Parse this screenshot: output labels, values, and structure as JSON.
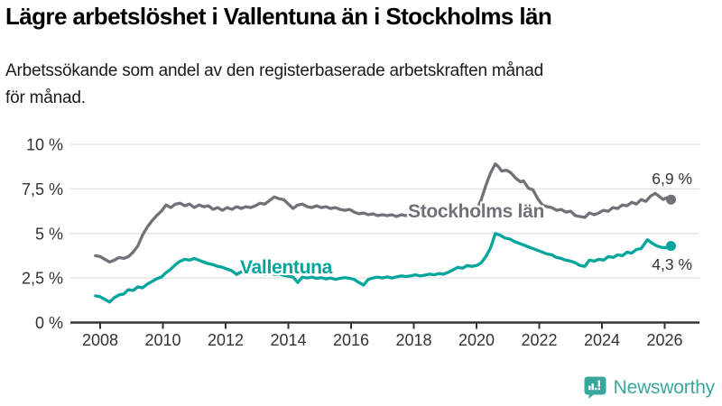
{
  "header": {
    "title": "Lägre arbetslöshet i Vallentuna än i Stockholms län",
    "subtitle_lines": [
      "Arbetssökande som andel av den registerbaserade arbetskraften månad",
      "för månad."
    ]
  },
  "branding": {
    "name": "Newsworthy",
    "color": "#3aa79f"
  },
  "colors": {
    "grid": "#e0e0e0",
    "axis": "#333333",
    "tick_label": "#333333",
    "end_label": "#333333",
    "background": "#ffffff"
  },
  "chart_data": {
    "type": "line",
    "title": "Lägre arbetslöshet i Vallentuna än i Stockholms län",
    "subtitle": "Arbetssökande som andel av den registerbaserade arbetskraften månad för månad.",
    "xlabel": "",
    "ylabel": "",
    "unit": "%",
    "grid": true,
    "legend_position": "inline-labels",
    "xlim": [
      2007.7,
      2026.8
    ],
    "ylim": [
      0,
      10
    ],
    "x_ticks": [
      2008,
      2010,
      2012,
      2014,
      2016,
      2018,
      2020,
      2022,
      2024,
      2026
    ],
    "y_ticks": [
      {
        "value": 0,
        "label": "0 %"
      },
      {
        "value": 2.5,
        "label": "2,5 %"
      },
      {
        "value": 5,
        "label": "5 %"
      },
      {
        "value": 7.5,
        "label": "7,5 %"
      },
      {
        "value": 10,
        "label": "10 %"
      }
    ],
    "series": [
      {
        "name": "Stockholms län",
        "color": "#74707a",
        "end_label": "6,9 %",
        "end_value": 6.9,
        "points": [
          [
            2007.85,
            3.75
          ],
          [
            2008.0,
            3.7
          ],
          [
            2008.15,
            3.55
          ],
          [
            2008.3,
            3.4
          ],
          [
            2008.45,
            3.5
          ],
          [
            2008.6,
            3.65
          ],
          [
            2008.75,
            3.6
          ],
          [
            2008.9,
            3.7
          ],
          [
            2009.05,
            3.95
          ],
          [
            2009.2,
            4.3
          ],
          [
            2009.35,
            4.9
          ],
          [
            2009.5,
            5.35
          ],
          [
            2009.65,
            5.7
          ],
          [
            2009.8,
            6.0
          ],
          [
            2009.95,
            6.25
          ],
          [
            2010.1,
            6.6
          ],
          [
            2010.25,
            6.45
          ],
          [
            2010.4,
            6.65
          ],
          [
            2010.55,
            6.7
          ],
          [
            2010.7,
            6.55
          ],
          [
            2010.85,
            6.65
          ],
          [
            2011.0,
            6.45
          ],
          [
            2011.15,
            6.6
          ],
          [
            2011.3,
            6.5
          ],
          [
            2011.45,
            6.55
          ],
          [
            2011.6,
            6.35
          ],
          [
            2011.75,
            6.45
          ],
          [
            2011.9,
            6.3
          ],
          [
            2012.05,
            6.45
          ],
          [
            2012.2,
            6.35
          ],
          [
            2012.35,
            6.5
          ],
          [
            2012.5,
            6.4
          ],
          [
            2012.65,
            6.5
          ],
          [
            2012.8,
            6.45
          ],
          [
            2012.95,
            6.55
          ],
          [
            2013.1,
            6.7
          ],
          [
            2013.25,
            6.65
          ],
          [
            2013.4,
            6.85
          ],
          [
            2013.55,
            7.05
          ],
          [
            2013.7,
            6.95
          ],
          [
            2013.85,
            6.9
          ],
          [
            2014.0,
            6.65
          ],
          [
            2014.15,
            6.4
          ],
          [
            2014.3,
            6.6
          ],
          [
            2014.45,
            6.65
          ],
          [
            2014.6,
            6.5
          ],
          [
            2014.75,
            6.45
          ],
          [
            2014.9,
            6.55
          ],
          [
            2015.05,
            6.45
          ],
          [
            2015.2,
            6.5
          ],
          [
            2015.35,
            6.4
          ],
          [
            2015.5,
            6.45
          ],
          [
            2015.65,
            6.35
          ],
          [
            2015.8,
            6.3
          ],
          [
            2015.95,
            6.35
          ],
          [
            2016.1,
            6.2
          ],
          [
            2016.25,
            6.1
          ],
          [
            2016.4,
            6.15
          ],
          [
            2016.55,
            6.05
          ],
          [
            2016.7,
            6.1
          ],
          [
            2016.85,
            6.0
          ],
          [
            2017.0,
            6.05
          ],
          [
            2017.15,
            6.0
          ],
          [
            2017.3,
            6.05
          ],
          [
            2017.45,
            5.95
          ],
          [
            2017.6,
            6.05
          ],
          [
            2017.75,
            6.0
          ],
          [
            2017.9,
            6.05
          ],
          [
            2018.05,
            6.0
          ],
          [
            2018.2,
            6.1
          ],
          [
            2018.35,
            6.0
          ],
          [
            2018.5,
            6.05
          ],
          [
            2018.65,
            6.1
          ],
          [
            2018.8,
            6.05
          ],
          [
            2018.95,
            6.1
          ],
          [
            2019.1,
            6.15
          ],
          [
            2019.25,
            6.1
          ],
          [
            2019.4,
            6.2
          ],
          [
            2019.55,
            6.15
          ],
          [
            2019.7,
            6.2
          ],
          [
            2019.85,
            6.25
          ],
          [
            2020.0,
            6.3
          ],
          [
            2020.15,
            6.9
          ],
          [
            2020.3,
            7.7
          ],
          [
            2020.45,
            8.4
          ],
          [
            2020.6,
            8.9
          ],
          [
            2020.7,
            8.75
          ],
          [
            2020.8,
            8.5
          ],
          [
            2020.95,
            8.55
          ],
          [
            2021.1,
            8.4
          ],
          [
            2021.25,
            8.1
          ],
          [
            2021.4,
            7.9
          ],
          [
            2021.5,
            7.95
          ],
          [
            2021.65,
            7.55
          ],
          [
            2021.8,
            7.45
          ],
          [
            2021.95,
            6.95
          ],
          [
            2022.1,
            6.6
          ],
          [
            2022.25,
            6.5
          ],
          [
            2022.4,
            6.45
          ],
          [
            2022.55,
            6.3
          ],
          [
            2022.7,
            6.35
          ],
          [
            2022.85,
            6.2
          ],
          [
            2023.0,
            6.25
          ],
          [
            2023.15,
            6.0
          ],
          [
            2023.3,
            5.95
          ],
          [
            2023.45,
            5.9
          ],
          [
            2023.6,
            6.15
          ],
          [
            2023.75,
            6.05
          ],
          [
            2023.9,
            6.15
          ],
          [
            2024.05,
            6.3
          ],
          [
            2024.2,
            6.25
          ],
          [
            2024.35,
            6.45
          ],
          [
            2024.5,
            6.4
          ],
          [
            2024.65,
            6.6
          ],
          [
            2024.8,
            6.55
          ],
          [
            2024.95,
            6.75
          ],
          [
            2025.1,
            6.65
          ],
          [
            2025.25,
            6.9
          ],
          [
            2025.4,
            6.8
          ],
          [
            2025.55,
            7.1
          ],
          [
            2025.7,
            7.25
          ],
          [
            2025.85,
            7.05
          ],
          [
            2025.95,
            6.9
          ],
          [
            2026.05,
            7.0
          ],
          [
            2026.2,
            6.9
          ]
        ]
      },
      {
        "name": "Vallentuna",
        "color": "#00a59b",
        "end_label": "4,3 %",
        "end_value": 4.3,
        "points": [
          [
            2007.85,
            1.5
          ],
          [
            2008.0,
            1.45
          ],
          [
            2008.15,
            1.3
          ],
          [
            2008.3,
            1.15
          ],
          [
            2008.45,
            1.4
          ],
          [
            2008.6,
            1.55
          ],
          [
            2008.75,
            1.6
          ],
          [
            2008.9,
            1.85
          ],
          [
            2009.05,
            1.8
          ],
          [
            2009.2,
            2.0
          ],
          [
            2009.35,
            1.95
          ],
          [
            2009.5,
            2.15
          ],
          [
            2009.65,
            2.3
          ],
          [
            2009.8,
            2.45
          ],
          [
            2009.95,
            2.55
          ],
          [
            2010.1,
            2.8
          ],
          [
            2010.25,
            3.0
          ],
          [
            2010.4,
            3.25
          ],
          [
            2010.55,
            3.45
          ],
          [
            2010.7,
            3.55
          ],
          [
            2010.85,
            3.5
          ],
          [
            2011.0,
            3.6
          ],
          [
            2011.15,
            3.5
          ],
          [
            2011.3,
            3.4
          ],
          [
            2011.45,
            3.3
          ],
          [
            2011.6,
            3.25
          ],
          [
            2011.75,
            3.15
          ],
          [
            2011.9,
            3.1
          ],
          [
            2012.05,
            3.0
          ],
          [
            2012.2,
            2.9
          ],
          [
            2012.35,
            2.7
          ],
          [
            2012.5,
            2.85
          ],
          [
            2012.65,
            2.8
          ],
          [
            2012.8,
            2.85
          ],
          [
            2012.95,
            2.75
          ],
          [
            2013.1,
            2.8
          ],
          [
            2013.25,
            2.72
          ],
          [
            2013.4,
            2.78
          ],
          [
            2013.55,
            2.7
          ],
          [
            2013.7,
            2.73
          ],
          [
            2013.85,
            2.65
          ],
          [
            2014.0,
            2.6
          ],
          [
            2014.15,
            2.55
          ],
          [
            2014.3,
            2.25
          ],
          [
            2014.45,
            2.55
          ],
          [
            2014.6,
            2.5
          ],
          [
            2014.75,
            2.55
          ],
          [
            2014.9,
            2.48
          ],
          [
            2015.05,
            2.52
          ],
          [
            2015.2,
            2.45
          ],
          [
            2015.35,
            2.5
          ],
          [
            2015.5,
            2.42
          ],
          [
            2015.65,
            2.48
          ],
          [
            2015.8,
            2.52
          ],
          [
            2015.95,
            2.48
          ],
          [
            2016.1,
            2.42
          ],
          [
            2016.25,
            2.25
          ],
          [
            2016.4,
            2.1
          ],
          [
            2016.55,
            2.42
          ],
          [
            2016.7,
            2.5
          ],
          [
            2016.85,
            2.55
          ],
          [
            2017.0,
            2.5
          ],
          [
            2017.15,
            2.56
          ],
          [
            2017.3,
            2.5
          ],
          [
            2017.45,
            2.56
          ],
          [
            2017.6,
            2.62
          ],
          [
            2017.75,
            2.58
          ],
          [
            2017.9,
            2.62
          ],
          [
            2018.05,
            2.68
          ],
          [
            2018.2,
            2.62
          ],
          [
            2018.35,
            2.66
          ],
          [
            2018.5,
            2.72
          ],
          [
            2018.65,
            2.68
          ],
          [
            2018.8,
            2.75
          ],
          [
            2018.95,
            2.72
          ],
          [
            2019.1,
            2.82
          ],
          [
            2019.25,
            2.95
          ],
          [
            2019.4,
            3.1
          ],
          [
            2019.55,
            3.05
          ],
          [
            2019.7,
            3.2
          ],
          [
            2019.85,
            3.15
          ],
          [
            2020.0,
            3.2
          ],
          [
            2020.15,
            3.35
          ],
          [
            2020.3,
            3.7
          ],
          [
            2020.45,
            4.2
          ],
          [
            2020.6,
            5.0
          ],
          [
            2020.75,
            4.9
          ],
          [
            2020.9,
            4.75
          ],
          [
            2021.05,
            4.7
          ],
          [
            2021.2,
            4.55
          ],
          [
            2021.35,
            4.45
          ],
          [
            2021.5,
            4.35
          ],
          [
            2021.65,
            4.25
          ],
          [
            2021.8,
            4.15
          ],
          [
            2021.95,
            4.05
          ],
          [
            2022.1,
            3.95
          ],
          [
            2022.25,
            3.85
          ],
          [
            2022.4,
            3.8
          ],
          [
            2022.55,
            3.65
          ],
          [
            2022.7,
            3.6
          ],
          [
            2022.85,
            3.5
          ],
          [
            2023.0,
            3.45
          ],
          [
            2023.15,
            3.35
          ],
          [
            2023.3,
            3.2
          ],
          [
            2023.45,
            3.15
          ],
          [
            2023.6,
            3.5
          ],
          [
            2023.75,
            3.45
          ],
          [
            2023.9,
            3.55
          ],
          [
            2024.05,
            3.5
          ],
          [
            2024.2,
            3.7
          ],
          [
            2024.35,
            3.65
          ],
          [
            2024.5,
            3.8
          ],
          [
            2024.65,
            3.75
          ],
          [
            2024.8,
            3.95
          ],
          [
            2024.95,
            3.9
          ],
          [
            2025.1,
            4.1
          ],
          [
            2025.25,
            4.15
          ],
          [
            2025.45,
            4.65
          ],
          [
            2025.6,
            4.45
          ],
          [
            2025.75,
            4.3
          ],
          [
            2025.9,
            4.22
          ],
          [
            2026.05,
            4.2
          ],
          [
            2026.2,
            4.3
          ]
        ]
      }
    ]
  }
}
